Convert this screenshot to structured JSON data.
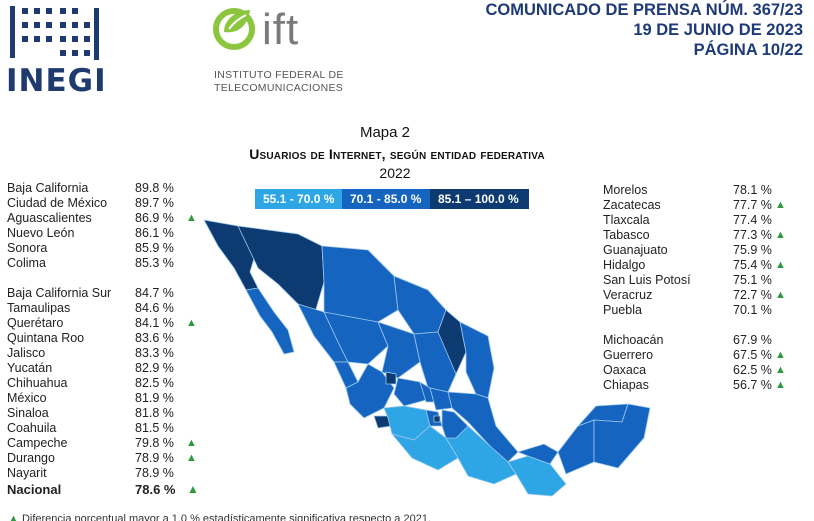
{
  "header": {
    "logo_inegi_text": "INEGI",
    "logo_ift_text": "ift",
    "logo_ift_line1": "INSTITUTO FEDERAL DE",
    "logo_ift_line2": "TELECOMUNICACIONES",
    "release_line": "COMUNICADO DE PRENSA NÚM. 367/23",
    "date_line": "19 DE JUNIO DE 2023",
    "page_line": "PÁGINA 10/22"
  },
  "map": {
    "label": "Mapa 2",
    "title": "Usuarios de Internet, según entidad federativa",
    "year": "2022",
    "legend": [
      {
        "label": "55.1 - 70.0 %",
        "color": "#2ea6e6"
      },
      {
        "label": "70.1 - 85.0 %",
        "color": "#1565c0"
      },
      {
        "label": "85.1 – 100.0 %",
        "color": "#0d3a70"
      }
    ]
  },
  "left_list_group1": [
    {
      "name": "Baja California",
      "value": "89.8 %",
      "up": false
    },
    {
      "name": "Ciudad de México",
      "value": "89.7 %",
      "up": false
    },
    {
      "name": "Aguascalientes",
      "value": "86.9 %",
      "up": true
    },
    {
      "name": "Nuevo León",
      "value": "86.1 %",
      "up": false
    },
    {
      "name": "Sonora",
      "value": "85.9 %",
      "up": false
    },
    {
      "name": "Colima",
      "value": "85.3 %",
      "up": false
    }
  ],
  "left_list_group2": [
    {
      "name": "Baja California Sur",
      "value": "84.7 %",
      "up": false
    },
    {
      "name": "Tamaulipas",
      "value": "84.6 %",
      "up": false
    },
    {
      "name": "Querétaro",
      "value": "84.1 %",
      "up": true
    },
    {
      "name": "Quintana Roo",
      "value": "83.6 %",
      "up": false
    },
    {
      "name": "Jalisco",
      "value": "83.3 %",
      "up": false
    },
    {
      "name": "Yucatán",
      "value": "82.9 %",
      "up": false
    },
    {
      "name": "Chihuahua",
      "value": "82.5 %",
      "up": false
    },
    {
      "name": "México",
      "value": "81.9 %",
      "up": false
    },
    {
      "name": "Sinaloa",
      "value": "81.8 %",
      "up": false
    },
    {
      "name": "Coahuila",
      "value": "81.5 %",
      "up": false
    },
    {
      "name": "Campeche",
      "value": "79.8 %",
      "up": true
    },
    {
      "name": "Durango",
      "value": "78.9 %",
      "up": true
    },
    {
      "name": "Nayarit",
      "value": "78.9 %",
      "up": false
    }
  ],
  "national": {
    "name": "Nacional",
    "value": "78.6 %",
    "up": true
  },
  "right_list_group1": [
    {
      "name": "Morelos",
      "value": "78.1 %",
      "up": false
    },
    {
      "name": "Zacatecas",
      "value": "77.7 %",
      "up": true
    },
    {
      "name": "Tlaxcala",
      "value": "77.4 %",
      "up": false
    },
    {
      "name": "Tabasco",
      "value": "77.3 %",
      "up": true
    },
    {
      "name": "Guanajuato",
      "value": "75.9 %",
      "up": false
    },
    {
      "name": "Hidalgo",
      "value": "75.4 %",
      "up": true
    },
    {
      "name": "San Luis Potosí",
      "value": "75.1 %",
      "up": false
    },
    {
      "name": "Veracruz",
      "value": "72.7 %",
      "up": true
    },
    {
      "name": "Puebla",
      "value": "70.1 %",
      "up": false
    }
  ],
  "right_list_group2": [
    {
      "name": "Michoacán",
      "value": "67.9 %",
      "up": false
    },
    {
      "name": "Guerrero",
      "value": "67.5 %",
      "up": true
    },
    {
      "name": "Oaxaca",
      "value": "62.5 %",
      "up": true
    },
    {
      "name": "Chiapas",
      "value": "56.7 %",
      "up": true
    }
  ],
  "footnote": "Diferencia porcentual mayor a 1.0 % estadísticamente significativa respecto a 2021.",
  "up_marker": "▲",
  "colors": {
    "header_blue": "#1f3a78",
    "up_green": "#2e9a3e"
  }
}
